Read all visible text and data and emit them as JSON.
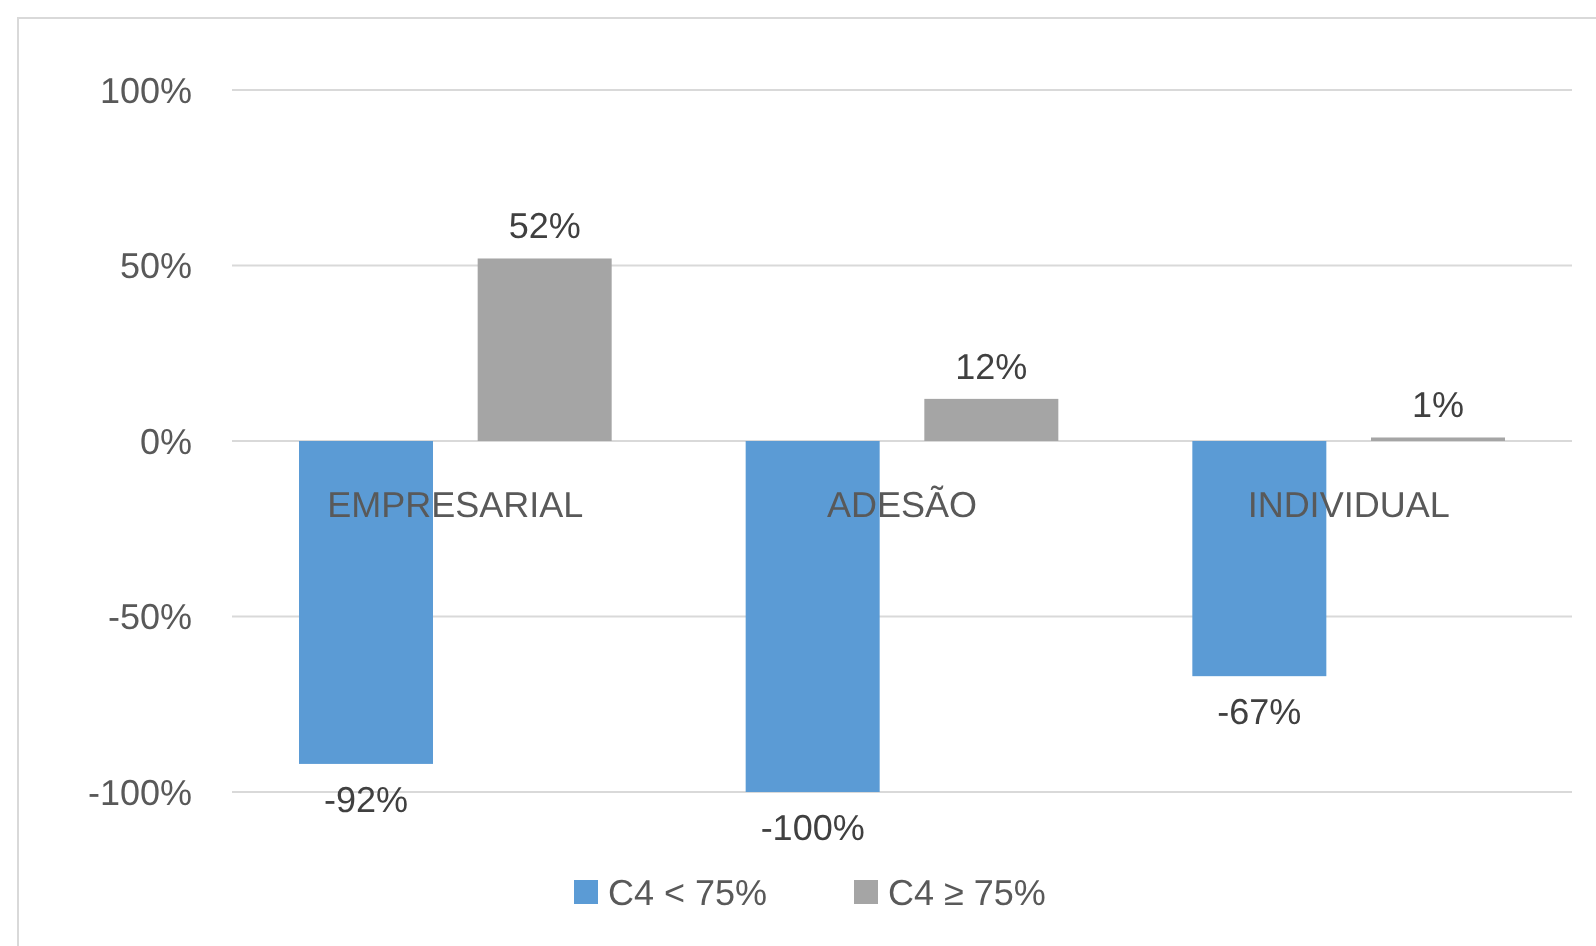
{
  "chart_data": {
    "type": "bar",
    "categories": [
      "EMPRESARIAL",
      "ADESÃO",
      "INDIVIDUAL"
    ],
    "series": [
      {
        "name": "C4 < 75%",
        "color": "#5b9bd5",
        "values": [
          -92,
          -100,
          -67
        ],
        "value_labels": [
          "-92%",
          "-100%",
          "-67%"
        ]
      },
      {
        "name": "C4 ≥ 75%",
        "color": "#a5a5a5",
        "values": [
          52,
          12,
          1
        ],
        "value_labels": [
          "52%",
          "12%",
          "1%"
        ]
      }
    ],
    "ylim": [
      -100,
      100
    ],
    "yticks": [
      {
        "value": -100,
        "label": "-100%"
      },
      {
        "value": -50,
        "label": "-50%"
      },
      {
        "value": 0,
        "label": "0%"
      },
      {
        "value": 50,
        "label": "50%"
      },
      {
        "value": 100,
        "label": "100%"
      }
    ],
    "grid": "y",
    "legend": "bottom"
  }
}
